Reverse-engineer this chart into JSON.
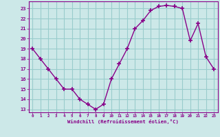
{
  "x": [
    0,
    1,
    2,
    3,
    4,
    5,
    6,
    7,
    8,
    9,
    10,
    11,
    12,
    13,
    14,
    15,
    16,
    17,
    18,
    19,
    20,
    21,
    22,
    23
  ],
  "y": [
    19,
    18,
    17,
    16,
    15,
    15,
    14,
    13.5,
    13,
    13.5,
    16,
    17.5,
    19,
    21,
    21.8,
    22.8,
    23.2,
    23.3,
    23.2,
    23,
    19.8,
    21.5,
    18.2,
    17
  ],
  "xlabel": "Windchill (Refroidissement éolien,°C)",
  "background_color": "#cce8e8",
  "grid_color": "#99cccc",
  "line_color": "#880088",
  "marker_color": "#880088",
  "ylim": [
    12.7,
    23.7
  ],
  "xlim": [
    -0.5,
    23.5
  ],
  "yticks": [
    13,
    14,
    15,
    16,
    17,
    18,
    19,
    20,
    21,
    22,
    23
  ],
  "xticks": [
    0,
    1,
    2,
    3,
    4,
    5,
    6,
    7,
    8,
    9,
    10,
    11,
    12,
    13,
    14,
    15,
    16,
    17,
    18,
    19,
    20,
    21,
    22,
    23
  ]
}
